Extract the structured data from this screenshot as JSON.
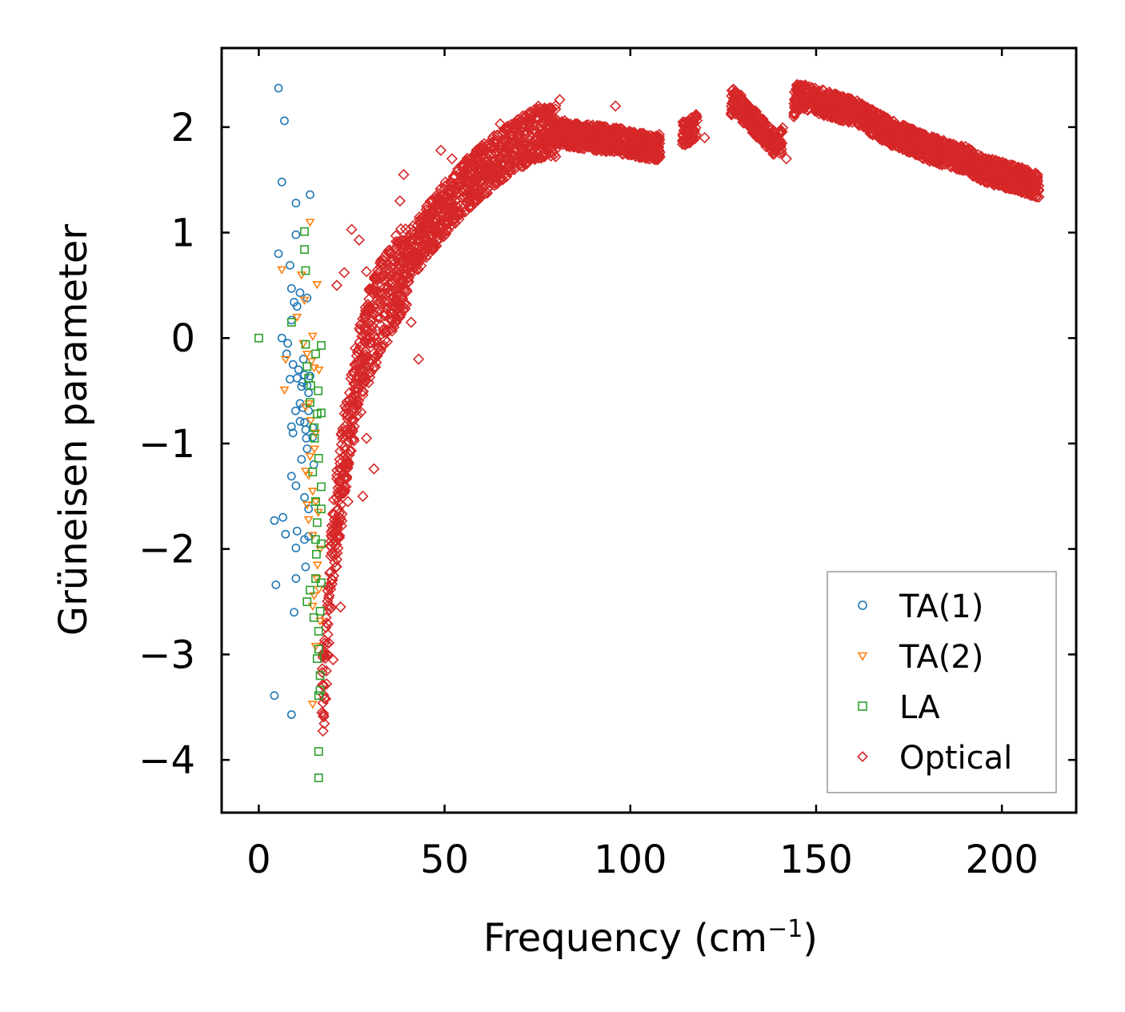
{
  "chart_data": {
    "type": "scatter",
    "title": "",
    "xlabel": "Frequency (cm",
    "xlabel_superscript": "−1",
    "xlabel_suffix": ")",
    "ylabel": "Grüneisen parameter",
    "xlim": [
      -10,
      220
    ],
    "ylim": [
      -4.5,
      2.75
    ],
    "grid": false,
    "legend_position": "lower-right",
    "x_ticks": [
      0,
      50,
      100,
      150,
      200
    ],
    "x_tick_labels": [
      "0",
      "50",
      "100",
      "150",
      "200"
    ],
    "y_ticks": [
      2,
      1,
      0,
      -1,
      -2,
      -3,
      -4
    ],
    "y_tick_labels": [
      "2",
      "1",
      "0",
      "−1",
      "−2",
      "−3",
      "−4"
    ],
    "series": [
      {
        "name": "TA(1)",
        "label": "TA(1)",
        "marker": "circle",
        "color": "#1f77b4",
        "points": [
          [
            5.3,
            2.37
          ],
          [
            6.9,
            2.06
          ],
          [
            6.2,
            1.48
          ],
          [
            10,
            1.28
          ],
          [
            13.8,
            1.36
          ],
          [
            10,
            0.98
          ],
          [
            5.3,
            0.8
          ],
          [
            8.4,
            0.69
          ],
          [
            8.8,
            0.47
          ],
          [
            11.1,
            0.43
          ],
          [
            13,
            0.38
          ],
          [
            9.5,
            0.34
          ],
          [
            10.3,
            0.3
          ],
          [
            8.8,
            0.17
          ],
          [
            6.2,
            0
          ],
          [
            7.8,
            -0.05
          ],
          [
            9.2,
            -0.25
          ],
          [
            10.3,
            -0.38
          ],
          [
            12.3,
            -0.35
          ],
          [
            13.8,
            -0.36
          ],
          [
            8.4,
            -0.39
          ],
          [
            11.5,
            -0.46
          ],
          [
            13.4,
            -0.52
          ],
          [
            11.1,
            -0.62
          ],
          [
            9.9,
            -0.69
          ],
          [
            12.3,
            -0.8
          ],
          [
            8.8,
            -0.84
          ],
          [
            11.1,
            -0.79
          ],
          [
            14.5,
            -0.94
          ],
          [
            9.2,
            -0.9
          ],
          [
            12.6,
            -0.87
          ],
          [
            8.8,
            -1.31
          ],
          [
            10,
            -1.4
          ],
          [
            12.3,
            -1.51
          ],
          [
            13.4,
            -1.62
          ],
          [
            4.2,
            -1.73
          ],
          [
            6.5,
            -1.7
          ],
          [
            10.3,
            -1.83
          ],
          [
            7.2,
            -1.86
          ],
          [
            13.4,
            -1.88
          ],
          [
            12.3,
            -1.91
          ],
          [
            10,
            -1.99
          ],
          [
            12.6,
            -2.17
          ],
          [
            10,
            -2.28
          ],
          [
            4.6,
            -2.34
          ],
          [
            9.5,
            -2.6
          ],
          [
            4.2,
            -3.39
          ],
          [
            8.8,
            -3.57
          ],
          [
            11.9,
            -0.66
          ],
          [
            13.4,
            -0.69
          ],
          [
            10.7,
            -0.3
          ],
          [
            12,
            -0.2
          ],
          [
            7.5,
            -0.15
          ],
          [
            14.5,
            -0.85
          ],
          [
            11.5,
            -1.15
          ],
          [
            13,
            -1.05
          ],
          [
            14.8,
            -1.2
          ],
          [
            12.8,
            -0.95
          ],
          [
            11.8,
            -0.42
          ],
          [
            13,
            -0.45
          ]
        ]
      },
      {
        "name": "TA(2)",
        "label": "TA(2)",
        "marker": "triangle-down",
        "color": "#ff7f0e",
        "points": [
          [
            13.8,
            1.1
          ],
          [
            6.2,
            0.65
          ],
          [
            11.5,
            0.6
          ],
          [
            15.7,
            0.51
          ],
          [
            12.3,
            0.36
          ],
          [
            10.3,
            0.2
          ],
          [
            14.5,
            0.02
          ],
          [
            7.2,
            -0.2
          ],
          [
            13,
            -0.15
          ],
          [
            14.9,
            -0.28
          ],
          [
            6.9,
            -0.49
          ],
          [
            12.6,
            -0.65
          ],
          [
            15.3,
            -0.9
          ],
          [
            13.8,
            -1.12
          ],
          [
            13.4,
            -1.3
          ],
          [
            12.6,
            -1.26
          ],
          [
            14.5,
            -1.45
          ],
          [
            15.3,
            -1.55
          ],
          [
            13.4,
            -1.72
          ],
          [
            14.5,
            -1.87
          ],
          [
            16.5,
            -2
          ],
          [
            15.7,
            -2.28
          ],
          [
            14.9,
            -2.44
          ],
          [
            14.5,
            -2.54
          ],
          [
            16.5,
            -2.68
          ],
          [
            15.3,
            -2.92
          ],
          [
            14.5,
            -3.47
          ],
          [
            13.5,
            -0.62
          ],
          [
            14,
            -0.78
          ],
          [
            15,
            -1.05
          ],
          [
            16,
            -1.65
          ],
          [
            13,
            -1.58
          ],
          [
            15.8,
            -2.15
          ],
          [
            16.2,
            -2.38
          ],
          [
            14.2,
            -0.22
          ],
          [
            12,
            -0.05
          ],
          [
            16.2,
            -0.3
          ]
        ]
      },
      {
        "name": "LA",
        "label": "LA",
        "marker": "square",
        "color": "#2ca02c",
        "points": [
          [
            0,
            0
          ],
          [
            12.3,
            1.01
          ],
          [
            12.3,
            0.84
          ],
          [
            12.6,
            0.64
          ],
          [
            8.8,
            0.15
          ],
          [
            12.6,
            -0.06
          ],
          [
            15.3,
            -0.15
          ],
          [
            16.8,
            -0.07
          ],
          [
            13,
            -0.27
          ],
          [
            13.4,
            -0.38
          ],
          [
            13.8,
            -0.61
          ],
          [
            15.7,
            -0.72
          ],
          [
            16.8,
            -0.71
          ],
          [
            14.9,
            -0.85
          ],
          [
            14.5,
            -1.27
          ],
          [
            16.1,
            -1.14
          ],
          [
            16.8,
            -1.41
          ],
          [
            15.3,
            -1.55
          ],
          [
            16.8,
            -1.62
          ],
          [
            15.7,
            -1.75
          ],
          [
            15.3,
            -1.91
          ],
          [
            16.8,
            -1.95
          ],
          [
            15.3,
            -2.28
          ],
          [
            13.8,
            -2.39
          ],
          [
            16.8,
            -2.32
          ],
          [
            13,
            -2.5
          ],
          [
            16.5,
            -2.59
          ],
          [
            16.1,
            -2.78
          ],
          [
            16.1,
            -2.95
          ],
          [
            15.7,
            -3.04
          ],
          [
            16.5,
            -3.2
          ],
          [
            16.1,
            -3.39
          ],
          [
            16.5,
            -3.34
          ],
          [
            16.1,
            -3.92
          ],
          [
            16.1,
            -4.17
          ],
          [
            15,
            -0.95
          ],
          [
            16,
            -0.5
          ],
          [
            14,
            -0.45
          ],
          [
            15.5,
            -2.05
          ],
          [
            14.8,
            -2.65
          ]
        ]
      },
      {
        "name": "Optical",
        "label": "Optical",
        "marker": "diamond",
        "color": "#d62728",
        "trend_points": [
          [
            17,
            -3.6
          ],
          [
            18,
            -3.0
          ],
          [
            19,
            -2.5
          ],
          [
            20,
            -2.0
          ],
          [
            22,
            -1.4
          ],
          [
            24,
            -0.9
          ],
          [
            26,
            -0.5
          ],
          [
            28,
            -0.2
          ],
          [
            30,
            0.05
          ],
          [
            33,
            0.3
          ],
          [
            36,
            0.5
          ],
          [
            40,
            0.75
          ],
          [
            45,
            1.0
          ],
          [
            50,
            1.22
          ],
          [
            55,
            1.42
          ],
          [
            60,
            1.58
          ],
          [
            65,
            1.72
          ],
          [
            70,
            1.85
          ],
          [
            75,
            1.95
          ],
          [
            80,
            1.97
          ],
          [
            85,
            1.92
          ],
          [
            90,
            1.9
          ],
          [
            95,
            1.88
          ],
          [
            100,
            1.85
          ],
          [
            107,
            1.8
          ],
          [
            116,
            1.97
          ],
          [
            128,
            2.25
          ],
          [
            132,
            2.1
          ],
          [
            136,
            1.95
          ],
          [
            140,
            1.8
          ],
          [
            145,
            2.3
          ],
          [
            150,
            2.25
          ],
          [
            155,
            2.2
          ],
          [
            160,
            2.15
          ],
          [
            165,
            2.05
          ],
          [
            170,
            1.95
          ],
          [
            175,
            1.88
          ],
          [
            180,
            1.8
          ],
          [
            185,
            1.75
          ],
          [
            190,
            1.7
          ],
          [
            195,
            1.6
          ],
          [
            200,
            1.55
          ],
          [
            205,
            1.5
          ],
          [
            210,
            1.45
          ]
        ],
        "outliers": [
          [
            81,
            2.26
          ],
          [
            65,
            2.03
          ],
          [
            49,
            1.78
          ],
          [
            52,
            1.7
          ],
          [
            39,
            1.55
          ],
          [
            38,
            1.3
          ],
          [
            25,
            1.03
          ],
          [
            27,
            0.93
          ],
          [
            29,
            0.63
          ],
          [
            33,
            0.58
          ],
          [
            21,
            0.5
          ],
          [
            23,
            0.62
          ],
          [
            41,
            0.15
          ],
          [
            43,
            -0.2
          ],
          [
            29,
            -0.95
          ],
          [
            31,
            -1.24
          ],
          [
            28,
            -1.5
          ],
          [
            22,
            -2.55
          ],
          [
            21,
            -2.1
          ],
          [
            18,
            -3.42
          ],
          [
            17,
            -3.55
          ],
          [
            20,
            -3.05
          ],
          [
            24,
            -1.55
          ],
          [
            96,
            2.2
          ],
          [
            120,
            1.9
          ],
          [
            138,
            1.85
          ],
          [
            142,
            1.7
          ]
        ]
      }
    ]
  }
}
